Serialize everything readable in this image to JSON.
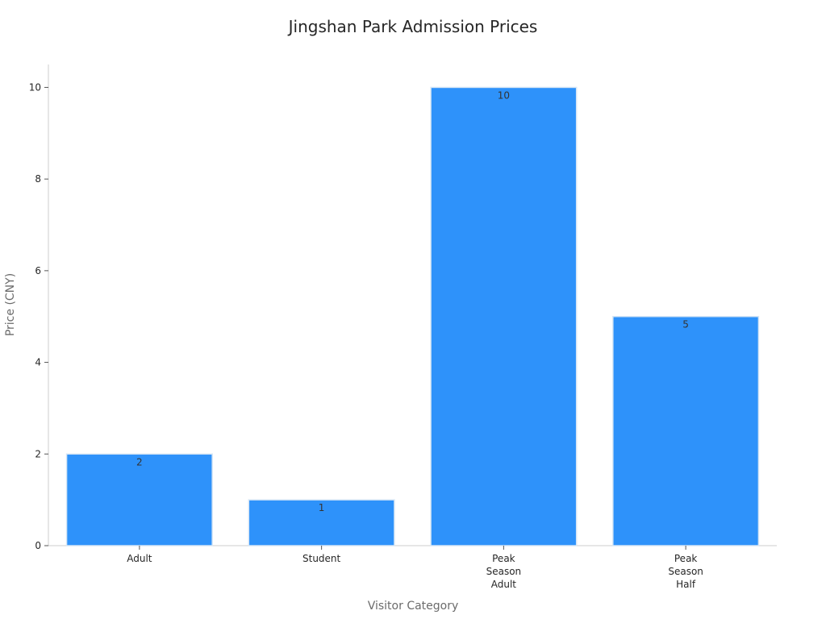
{
  "chart_data": {
    "type": "bar",
    "title": "Jingshan Park Admission Prices",
    "xlabel": "Visitor Category",
    "ylabel": "Price (CNY)",
    "categories": [
      [
        "Adult"
      ],
      [
        "Student"
      ],
      [
        "Peak",
        "Season",
        "Adult"
      ],
      [
        "Peak",
        "Season",
        "Half"
      ]
    ],
    "values": [
      2,
      1,
      10,
      5
    ],
    "data_labels": [
      "2",
      "1",
      "10",
      "5"
    ],
    "ylim": [
      0,
      10.5
    ],
    "yticks": [
      0,
      2,
      4,
      6,
      8,
      10
    ],
    "grid": false,
    "legend": "none",
    "colors": {
      "bar": "#2e92fa",
      "bar_edge": "#d6e6f5",
      "axis": "#cccccc"
    }
  }
}
